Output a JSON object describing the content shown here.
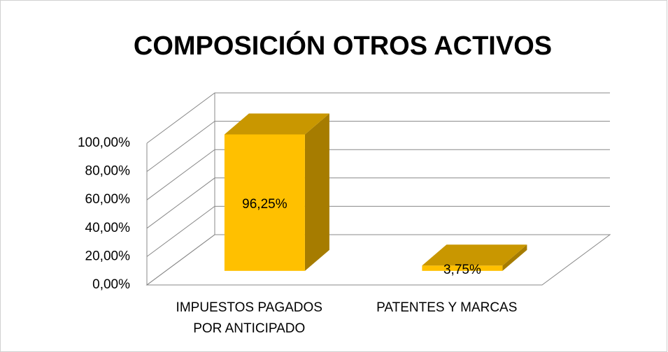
{
  "chart_data": {
    "type": "bar3d",
    "title": "COMPOSICIÓN OTROS ACTIVOS",
    "categories": [
      "IMPUESTOS PAGADOS POR ANTICIPADO",
      "PATENTES Y MARCAS"
    ],
    "values": [
      96.25,
      3.75
    ],
    "value_labels": [
      "96,25%",
      "3,75%"
    ],
    "color": "#ffc000",
    "ylim": [
      0,
      100
    ],
    "yticks": [
      {
        "value": 0,
        "label": "0,00%"
      },
      {
        "value": 20,
        "label": "20,00%"
      },
      {
        "value": 40,
        "label": "40,00%"
      },
      {
        "value": 60,
        "label": "60,00%"
      },
      {
        "value": 80,
        "label": "80,00%"
      },
      {
        "value": 100,
        "label": "100,00%"
      }
    ],
    "grid": true
  }
}
